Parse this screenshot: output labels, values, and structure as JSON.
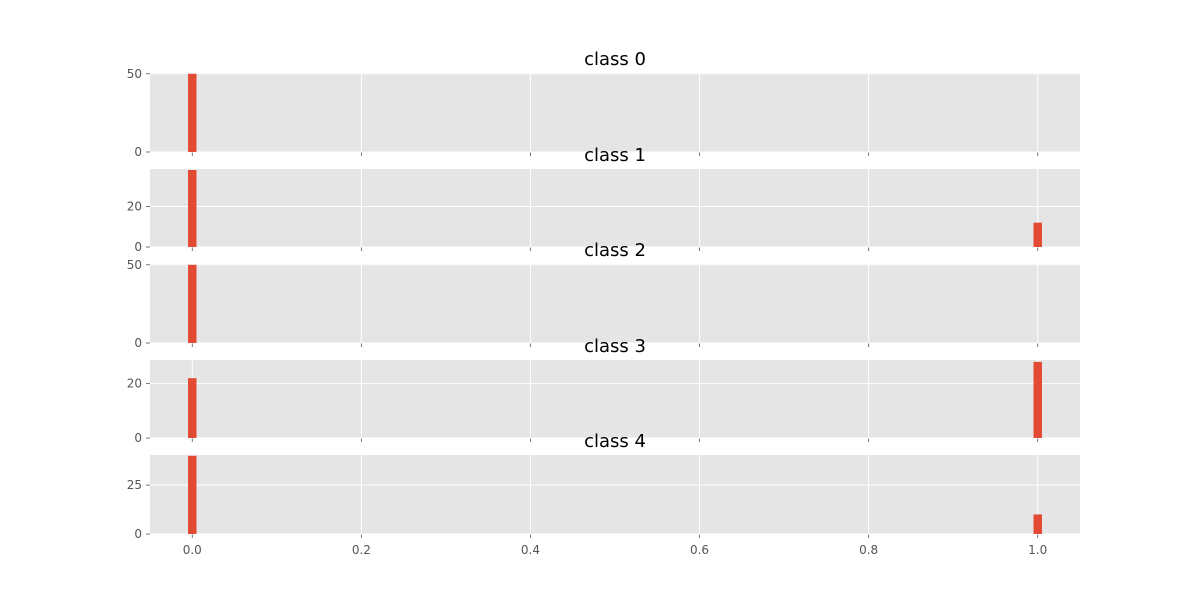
{
  "chart_data": {
    "type": "bar",
    "layout": "stacked-subplots-shared-x",
    "grid": true,
    "bar_color": "#e24a33",
    "background_color": "#e5e5e5",
    "xlim": [
      -0.05,
      1.05
    ],
    "x_ticks": [
      0.0,
      0.2,
      0.4,
      0.6,
      0.8,
      1.0
    ],
    "x_tick_labels": [
      "0.0",
      "0.2",
      "0.4",
      "0.6",
      "0.8",
      "1.0"
    ],
    "bar_width": 0.01,
    "panels": [
      {
        "title": "class 0",
        "ylim": [
          0,
          50.5
        ],
        "yticks": [
          0,
          50
        ],
        "ytick_labels": [
          "0",
          "50"
        ],
        "bars": [
          {
            "x": 0.0,
            "value": 50
          }
        ]
      },
      {
        "title": "class 1",
        "ylim": [
          0,
          38.5
        ],
        "yticks": [
          0,
          20
        ],
        "ytick_labels": [
          "0",
          "20"
        ],
        "bars": [
          {
            "x": 0.0,
            "value": 38
          },
          {
            "x": 1.0,
            "value": 12
          }
        ]
      },
      {
        "title": "class 2",
        "ylim": [
          0,
          50.5
        ],
        "yticks": [
          0,
          50
        ],
        "ytick_labels": [
          "0",
          "50"
        ],
        "bars": [
          {
            "x": 0.0,
            "value": 50
          }
        ]
      },
      {
        "title": "class 3",
        "ylim": [
          0,
          28.7
        ],
        "yticks": [
          0,
          20
        ],
        "ytick_labels": [
          "0",
          "20"
        ],
        "bars": [
          {
            "x": 0.0,
            "value": 22
          },
          {
            "x": 1.0,
            "value": 28
          }
        ]
      },
      {
        "title": "class 4",
        "ylim": [
          0,
          40.4
        ],
        "yticks": [
          0,
          25
        ],
        "ytick_labels": [
          "0",
          "25"
        ],
        "bars": [
          {
            "x": 0.0,
            "value": 40
          },
          {
            "x": 1.0,
            "value": 10
          }
        ]
      }
    ]
  }
}
